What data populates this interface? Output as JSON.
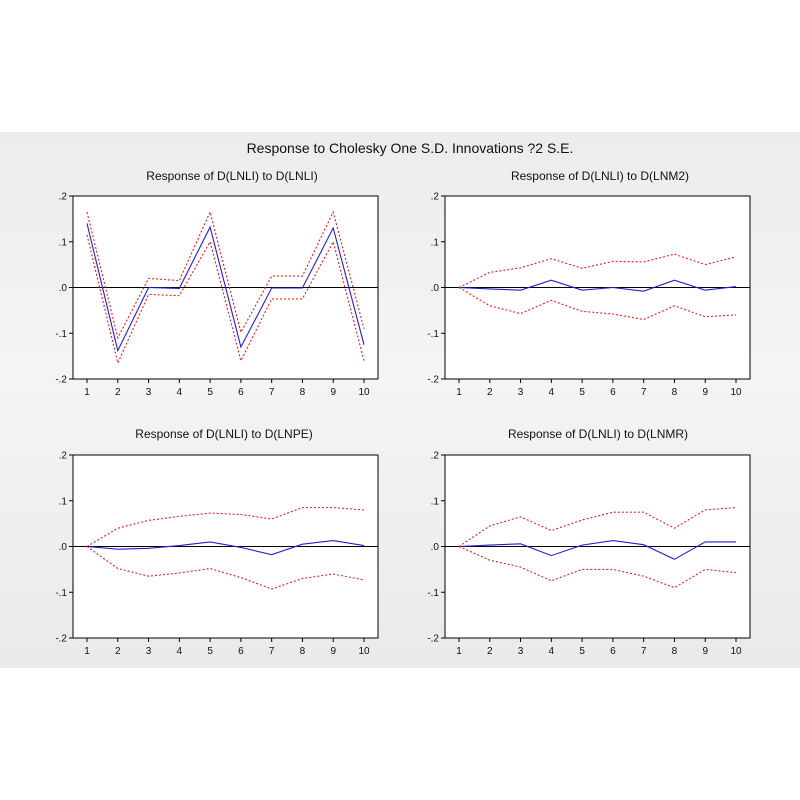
{
  "title": "Response to Cholesky One S.D. Innovations ?2 S.E.",
  "colors": {
    "response": "#2020d0",
    "band": "#e02020",
    "zero_line": "#000000",
    "plot_bg": "#ffffff"
  },
  "chart_data": [
    {
      "type": "line",
      "title": "Response of D(LNLI) to D(LNLI)",
      "x": [
        1,
        2,
        3,
        4,
        5,
        6,
        7,
        8,
        9,
        10
      ],
      "ylim": [
        -0.2,
        0.2
      ],
      "yticks": [
        ".2",
        ".1",
        ".0",
        "-.1",
        "-.2"
      ],
      "xticks": [
        "1",
        "2",
        "3",
        "4",
        "5",
        "6",
        "7",
        "8",
        "9",
        "10"
      ],
      "series": [
        {
          "role": "response",
          "values": [
            0.14,
            -0.138,
            0.0,
            -0.002,
            0.132,
            -0.13,
            -0.001,
            -0.001,
            0.13,
            -0.125
          ]
        },
        {
          "role": "upper",
          "values": [
            0.165,
            -0.11,
            0.02,
            0.015,
            0.165,
            -0.098,
            0.025,
            0.025,
            0.165,
            -0.09
          ]
        },
        {
          "role": "lower",
          "values": [
            0.115,
            -0.165,
            -0.015,
            -0.018,
            0.1,
            -0.16,
            -0.025,
            -0.025,
            0.1,
            -0.16
          ]
        }
      ]
    },
    {
      "type": "line",
      "title": "Response of D(LNLI) to D(LNM2)",
      "x": [
        1,
        2,
        3,
        4,
        5,
        6,
        7,
        8,
        9,
        10
      ],
      "ylim": [
        -0.2,
        0.2
      ],
      "yticks": [
        ".2",
        ".1",
        ".0",
        "-.1",
        "-.2"
      ],
      "xticks": [
        "1",
        "2",
        "3",
        "4",
        "5",
        "6",
        "7",
        "8",
        "9",
        "10"
      ],
      "series": [
        {
          "role": "response",
          "values": [
            0.0,
            -0.003,
            -0.006,
            0.016,
            -0.006,
            0.0,
            -0.008,
            0.016,
            -0.006,
            0.002
          ]
        },
        {
          "role": "upper",
          "values": [
            0.0,
            0.033,
            0.043,
            0.063,
            0.042,
            0.057,
            0.056,
            0.073,
            0.05,
            0.067
          ]
        },
        {
          "role": "lower",
          "values": [
            0.0,
            -0.04,
            -0.057,
            -0.028,
            -0.052,
            -0.058,
            -0.07,
            -0.04,
            -0.064,
            -0.06
          ]
        }
      ]
    },
    {
      "type": "line",
      "title": "Response of D(LNLI) to D(LNPE)",
      "x": [
        1,
        2,
        3,
        4,
        5,
        6,
        7,
        8,
        9,
        10
      ],
      "ylim": [
        -0.2,
        0.2
      ],
      "yticks": [
        ".2",
        ".1",
        ".0",
        "-.1",
        "-.2"
      ],
      "xticks": [
        "1",
        "2",
        "3",
        "4",
        "5",
        "6",
        "7",
        "8",
        "9",
        "10"
      ],
      "series": [
        {
          "role": "response",
          "values": [
            0.0,
            -0.006,
            -0.004,
            0.002,
            0.01,
            -0.002,
            -0.018,
            0.005,
            0.013,
            0.002
          ]
        },
        {
          "role": "upper",
          "values": [
            0.0,
            0.04,
            0.057,
            0.066,
            0.073,
            0.07,
            0.06,
            0.085,
            0.085,
            0.08
          ]
        },
        {
          "role": "lower",
          "values": [
            0.0,
            -0.048,
            -0.065,
            -0.058,
            -0.048,
            -0.068,
            -0.093,
            -0.07,
            -0.06,
            -0.073
          ]
        }
      ]
    },
    {
      "type": "line",
      "title": "Response of D(LNLI) to D(LNMR)",
      "x": [
        1,
        2,
        3,
        4,
        5,
        6,
        7,
        8,
        9,
        10
      ],
      "ylim": [
        -0.2,
        0.2
      ],
      "yticks": [
        ".2",
        ".1",
        ".0",
        "-.1",
        "-.2"
      ],
      "xticks": [
        "1",
        "2",
        "3",
        "4",
        "5",
        "6",
        "7",
        "8",
        "9",
        "10"
      ],
      "series": [
        {
          "role": "response",
          "values": [
            0.0,
            0.003,
            0.006,
            -0.02,
            0.003,
            0.013,
            0.004,
            -0.028,
            0.01,
            0.01
          ]
        },
        {
          "role": "upper",
          "values": [
            0.0,
            0.045,
            0.065,
            0.035,
            0.058,
            0.075,
            0.075,
            0.04,
            0.08,
            0.085
          ]
        },
        {
          "role": "lower",
          "values": [
            0.0,
            -0.03,
            -0.045,
            -0.075,
            -0.05,
            -0.05,
            -0.065,
            -0.09,
            -0.05,
            -0.057
          ]
        }
      ]
    }
  ]
}
